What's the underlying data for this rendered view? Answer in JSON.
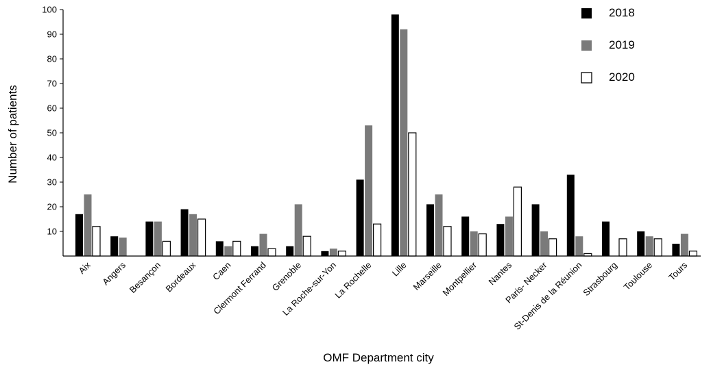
{
  "chart_data": {
    "type": "bar",
    "title": "",
    "xlabel": "OMF Department city",
    "ylabel": "Number of patients",
    "ylim": [
      0,
      100
    ],
    "yticks": [
      10,
      20,
      30,
      40,
      50,
      60,
      70,
      80,
      90,
      100
    ],
    "grid": false,
    "legend_position": "top-right",
    "categories": [
      "Aix",
      "Angers",
      "Besançon",
      "Bordeaux",
      "Caen",
      "Clermont Ferrand",
      "Grenoble",
      "La Roche-sur-Yon",
      "La Rochelle",
      "Lille",
      "Marseille",
      "Montpellier",
      "Nantes",
      "Paris- Necker",
      "St-Denis de la Réunion",
      "Strasbourg",
      "Toulouse",
      "Tours"
    ],
    "series": [
      {
        "name": "2018",
        "color": "#000000",
        "values": [
          17,
          8,
          14,
          19,
          6,
          4,
          4,
          2,
          31,
          98,
          21,
          16,
          13,
          21,
          33,
          14,
          10,
          5
        ]
      },
      {
        "name": "2019",
        "color": "#7a7a7a",
        "values": [
          25,
          7.5,
          14,
          17,
          4,
          9,
          21,
          3,
          53,
          92,
          25,
          10,
          16,
          10,
          8,
          0,
          8,
          9
        ]
      },
      {
        "name": "2020",
        "color": "#ffffff",
        "values": [
          12,
          0,
          6,
          15,
          6,
          3,
          8,
          2,
          13,
          50,
          12,
          9,
          28,
          7,
          1,
          7,
          7,
          2
        ]
      }
    ]
  }
}
